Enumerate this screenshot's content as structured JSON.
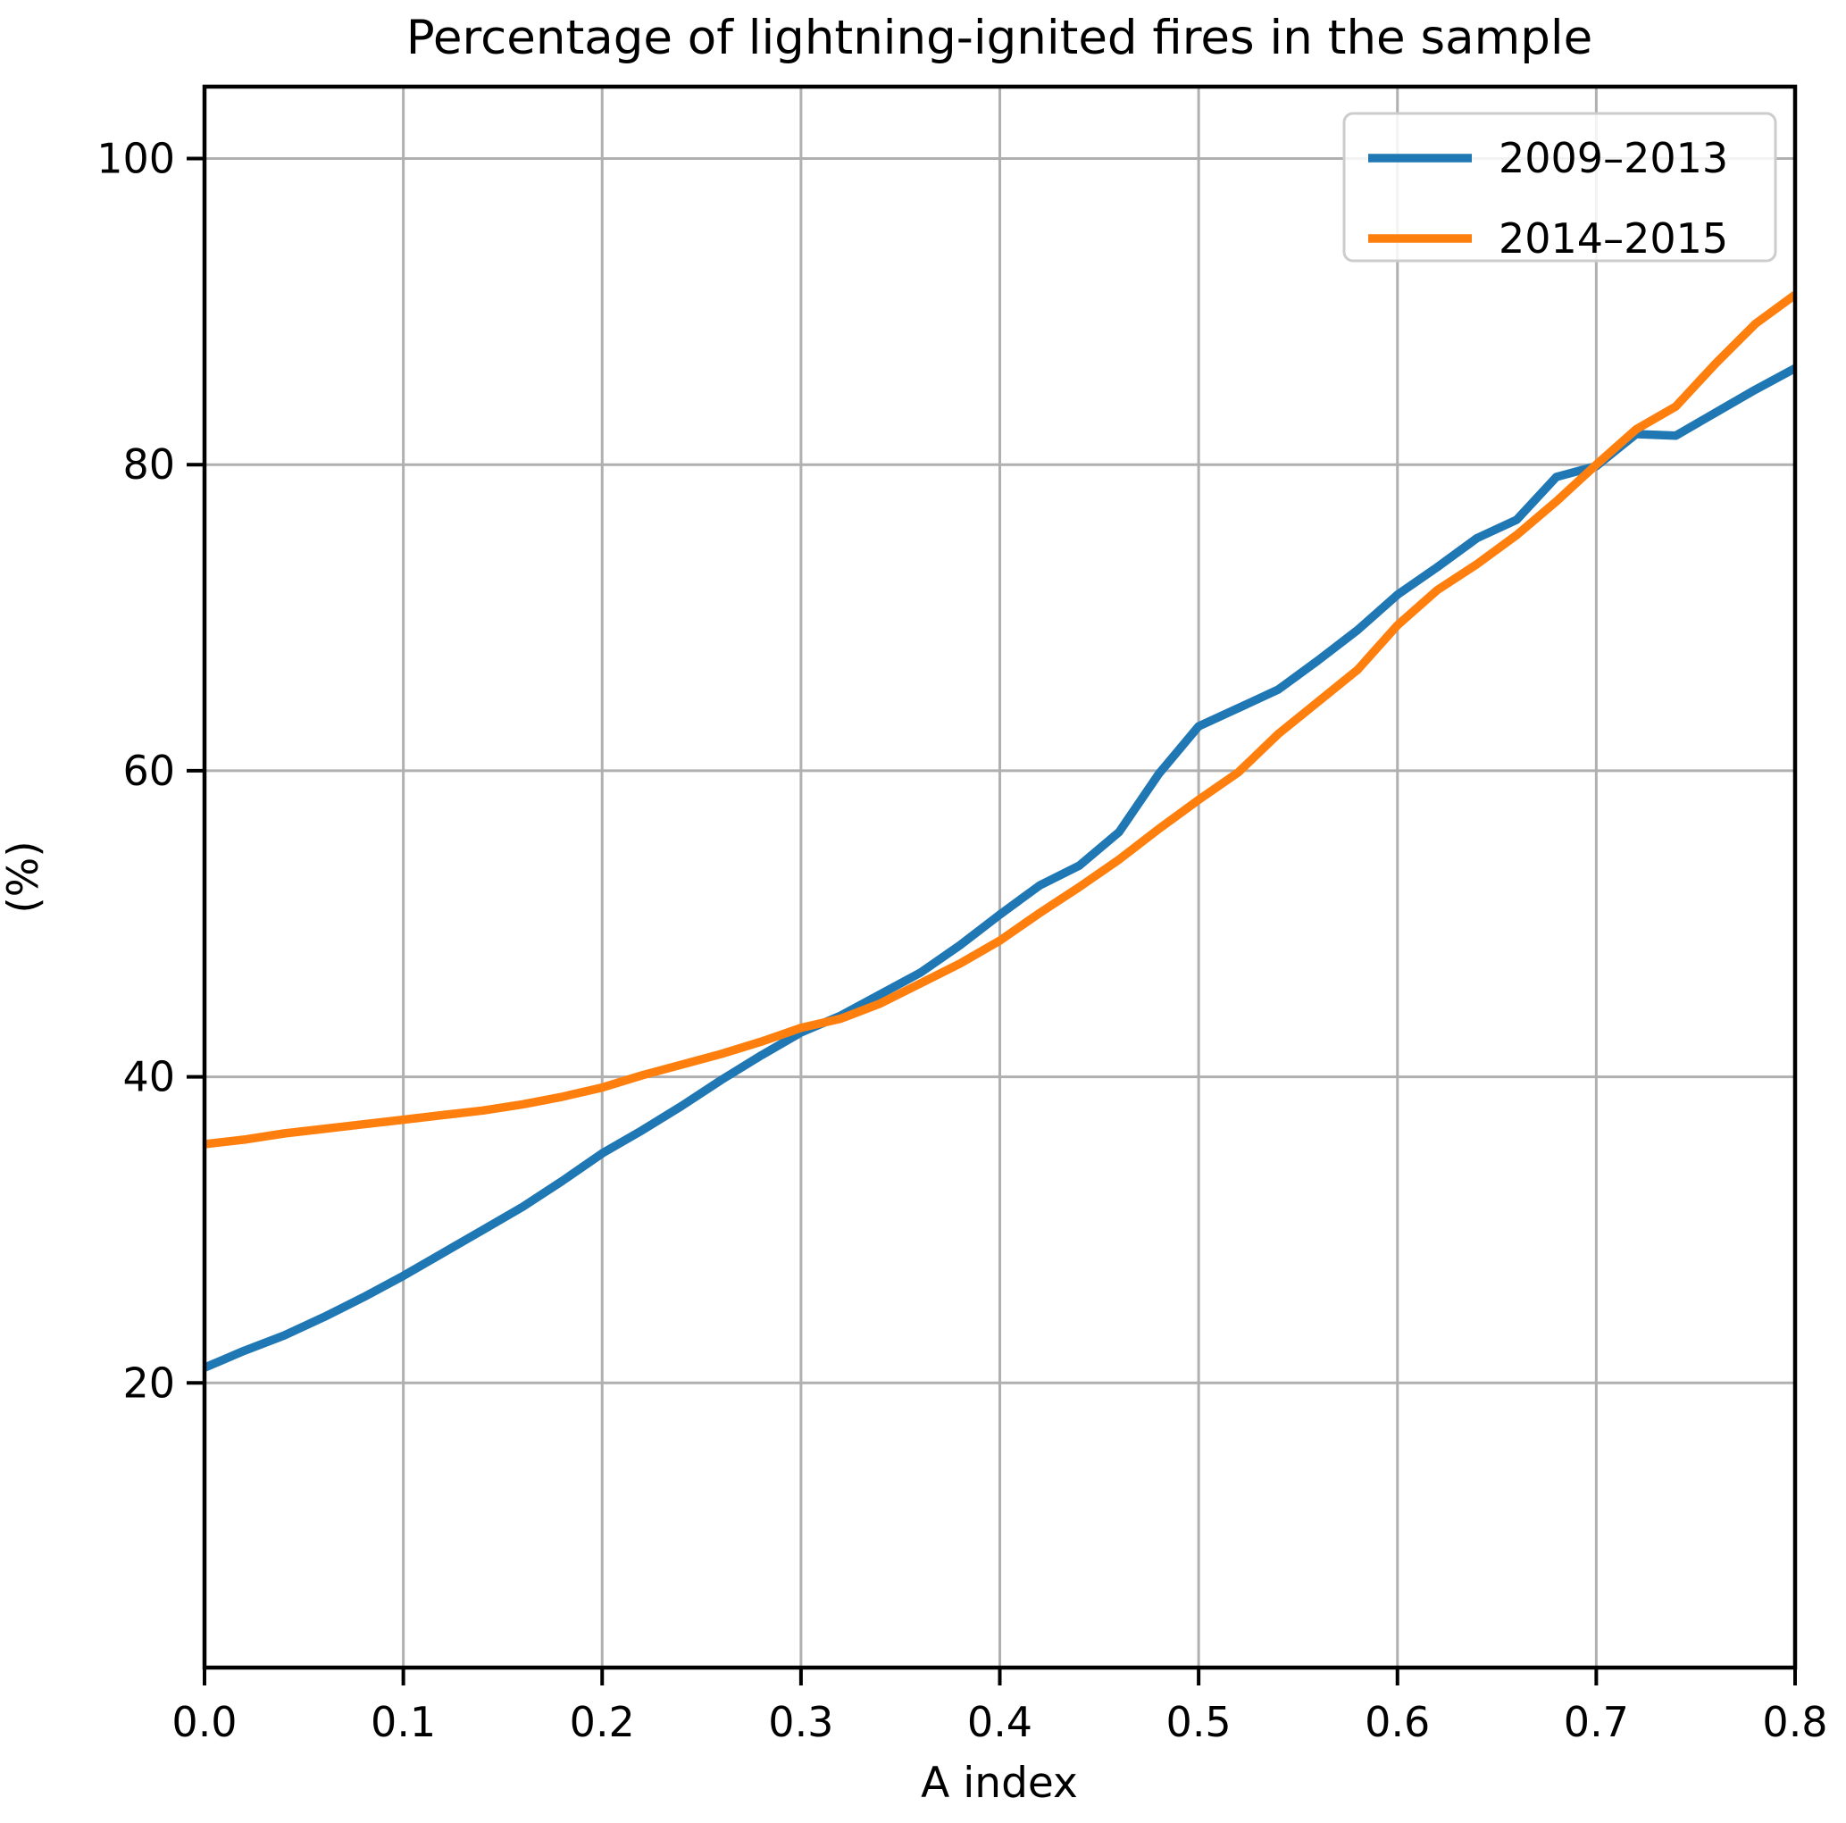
{
  "chart_data": {
    "type": "line",
    "title": "Percentage of lightning-ignited fires in the sample",
    "xlabel": "A index",
    "ylabel": "(%)",
    "xlim": [
      0.0,
      0.8
    ],
    "ylim": [
      1.4,
      104.7
    ],
    "grid": true,
    "legend_position": "upper right",
    "x_tick_labels": [
      "0.0",
      "0.1",
      "0.2",
      "0.3",
      "0.4",
      "0.5",
      "0.6",
      "0.7",
      "0.8"
    ],
    "y_tick_labels": [
      "20",
      "40",
      "60",
      "80",
      "100"
    ],
    "x": [
      0.0,
      0.02,
      0.04,
      0.06,
      0.08,
      0.1,
      0.12,
      0.14,
      0.16,
      0.18,
      0.2,
      0.22,
      0.24,
      0.26,
      0.28,
      0.3,
      0.32,
      0.34,
      0.36,
      0.38,
      0.4,
      0.42,
      0.44,
      0.46,
      0.48,
      0.5,
      0.52,
      0.54,
      0.56,
      0.58,
      0.6,
      0.62,
      0.64,
      0.66,
      0.68,
      0.7,
      0.72,
      0.74,
      0.76,
      0.78,
      0.8
    ],
    "series": [
      {
        "name": "2009–2013",
        "color": "#1f77b4",
        "values": [
          21.0,
          22.1,
          23.1,
          24.3,
          25.6,
          27.0,
          28.5,
          30.0,
          31.5,
          33.2,
          35.0,
          36.5,
          38.1,
          39.8,
          41.4,
          42.9,
          44.0,
          45.4,
          46.8,
          48.6,
          50.6,
          52.5,
          53.8,
          56.0,
          59.8,
          62.9,
          64.1,
          65.3,
          67.2,
          69.2,
          71.5,
          73.3,
          75.2,
          76.4,
          79.2,
          79.9,
          82.0,
          81.9,
          83.4,
          84.9,
          86.3
        ]
      },
      {
        "name": "2014–2015",
        "color": "#ff7f0e",
        "values": [
          35.6,
          35.9,
          36.3,
          36.6,
          36.9,
          37.2,
          37.5,
          37.8,
          38.2,
          38.7,
          39.3,
          40.1,
          40.8,
          41.5,
          42.3,
          43.2,
          43.8,
          44.8,
          46.1,
          47.4,
          48.9,
          50.7,
          52.4,
          54.2,
          56.2,
          58.1,
          59.9,
          62.4,
          64.5,
          66.6,
          69.5,
          71.8,
          73.5,
          75.4,
          77.6,
          80.0,
          82.3,
          83.8,
          86.6,
          89.2,
          91.1
        ]
      }
    ]
  }
}
